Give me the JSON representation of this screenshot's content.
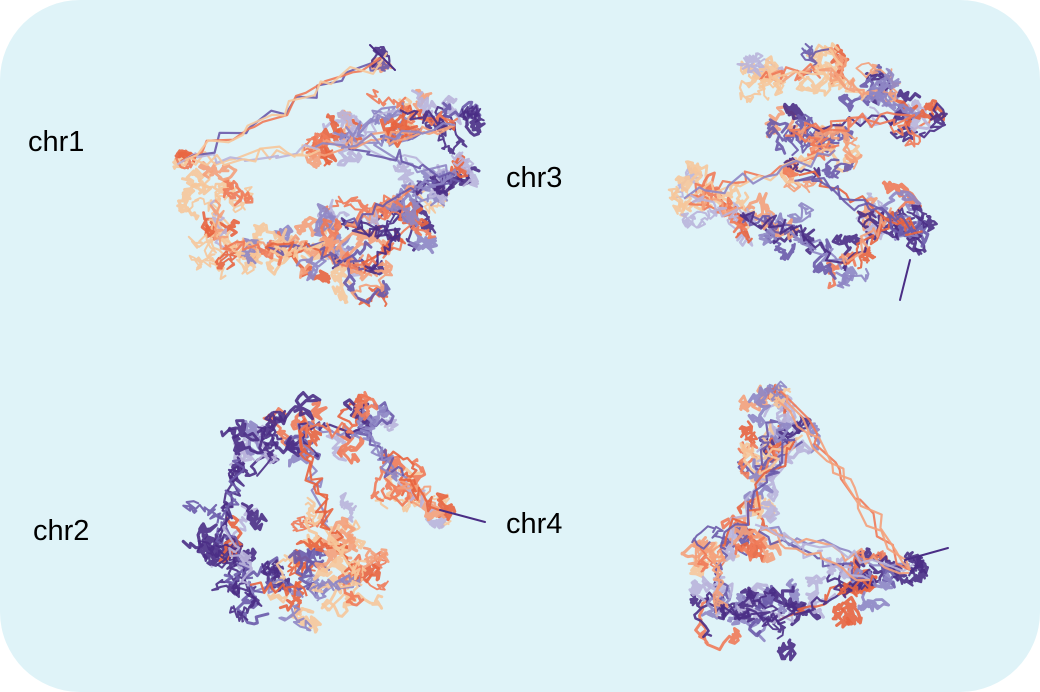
{
  "labels": {
    "chr1": "chr1",
    "chr2": "chr2",
    "chr3": "chr3",
    "chr4": "chr4"
  },
  "colors": {
    "background": "#dff3f8",
    "chain_palette": [
      "#f6c79a",
      "#f4a07a",
      "#f07a58",
      "#e8643f",
      "#b9b4da",
      "#8e86c4",
      "#6a5aaa",
      "#4a2d85"
    ]
  }
}
